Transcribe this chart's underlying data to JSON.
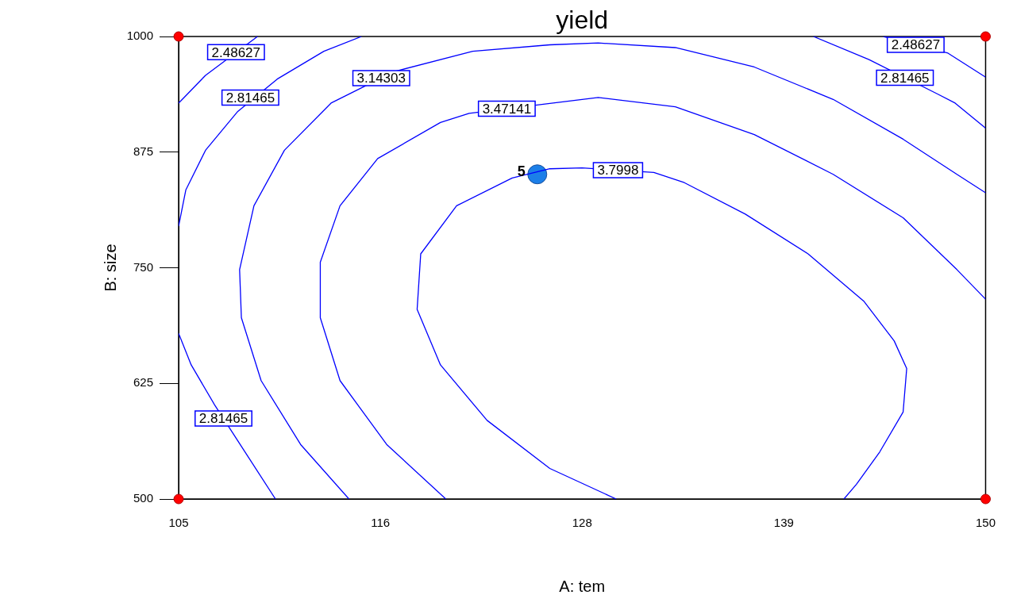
{
  "chart_data": {
    "type": "line",
    "title": "yield",
    "xlabel": "A: tem",
    "ylabel": "B: size",
    "xlim": [
      105,
      150
    ],
    "xticks": [
      105,
      {
        "value": 116.25,
        "label": "116"
      },
      {
        "value": 127.5,
        "label": "128"
      },
      {
        "value": 138.75,
        "label": "139"
      },
      150
    ],
    "ylim": [
      500,
      1000
    ],
    "yticks": [
      500,
      625,
      750,
      875,
      1000
    ],
    "grid": false,
    "legend": false,
    "marker": "none",
    "line_style": "solid",
    "series": [
      {
        "type": "line",
        "color": "#0000ff",
        "x": [
          129.4,
          125.7,
          122.2,
          119.6,
          118.3,
          118.5,
          120.5,
          123.6,
          125.7,
          127.5,
          131.5,
          133.2,
          136.6,
          140.1,
          143.2,
          144.9,
          145.6,
          145.4,
          144.1,
          142.8,
          142.1
        ],
        "values": [
          500,
          533,
          585,
          645,
          705,
          765,
          817,
          847,
          857,
          858,
          853,
          842,
          808,
          765,
          714,
          671,
          641,
          594,
          551,
          516,
          500
        ]
      },
      {
        "type": "line",
        "color": "#0000ff",
        "x": [
          119.9,
          116.6,
          114.0,
          112.9,
          112.9,
          114.0,
          116.1,
          119.6,
          121.2,
          128.4,
          132.7,
          137.1,
          141.5,
          145.4,
          148.4,
          150
        ],
        "values": [
          500,
          559,
          628,
          696,
          756,
          817,
          868,
          907,
          917,
          934,
          924,
          894,
          851,
          804,
          748,
          716
        ]
      },
      {
        "type": "line",
        "color": "#0000ff",
        "x": [
          114.5,
          111.8,
          109.6,
          108.5,
          108.4,
          109.2,
          110.9,
          113.5,
          117.0,
          121.4,
          125.7,
          128.4,
          132.7,
          137.1,
          141.5,
          145.4,
          148.4,
          150
        ],
        "values": [
          500,
          559,
          628,
          696,
          748,
          817,
          877,
          928,
          962,
          984,
          991,
          993,
          988,
          967,
          932,
          889,
          851,
          831
        ]
      },
      {
        "type": "line",
        "color": "#0000ff",
        "x": [
          110.4,
          108.7,
          107.0,
          105.7,
          105
        ],
        "values": [
          500,
          551,
          602,
          645,
          679
        ]
      },
      {
        "type": "line",
        "color": "#0000ff",
        "x": [
          105,
          105.4,
          106.5,
          108.3,
          110.5,
          113.1,
          115.2
        ],
        "values": [
          795,
          834,
          877,
          919,
          954,
          984,
          1000
        ]
      },
      {
        "type": "line",
        "color": "#0000ff",
        "x": [
          105,
          106.5,
          109.4
        ],
        "values": [
          928,
          958,
          1000
        ]
      },
      {
        "type": "line",
        "color": "#0000ff",
        "x": [
          140.4,
          143.5,
          147.3,
          148.3,
          150
        ],
        "values": [
          1000,
          975,
          938,
          928,
          901
        ]
      },
      {
        "type": "line",
        "color": "#0000ff",
        "x": [
          144.3,
          147.9,
          150
        ],
        "values": [
          1000,
          982,
          956
        ]
      },
      {
        "type": "scatter",
        "color": "#ff0000",
        "marker": "circle",
        "x": [
          105,
          150,
          105,
          150
        ],
        "values": [
          500,
          500,
          1000,
          1000
        ]
      },
      {
        "type": "scatter",
        "color": "#1c7fe8",
        "marker": "circle",
        "x": [
          125
        ],
        "values": [
          851
        ]
      }
    ],
    "annotations": [
      {
        "text": "2.48627",
        "x": 108.2,
        "y": 983
      },
      {
        "text": "2.81465",
        "x": 109.0,
        "y": 934
      },
      {
        "text": "3.14303",
        "x": 116.3,
        "y": 955
      },
      {
        "text": "3.47141",
        "x": 123.3,
        "y": 922
      },
      {
        "text": "3.7998",
        "x": 129.5,
        "y": 855.5
      },
      {
        "text": "2.48627",
        "x": 146.1,
        "y": 991
      },
      {
        "text": "2.81465",
        "x": 145.5,
        "y": 955.5
      },
      {
        "text": "2.81465",
        "x": 107.5,
        "y": 587
      },
      {
        "text": "5",
        "x": 125,
        "y": 851
      }
    ]
  }
}
